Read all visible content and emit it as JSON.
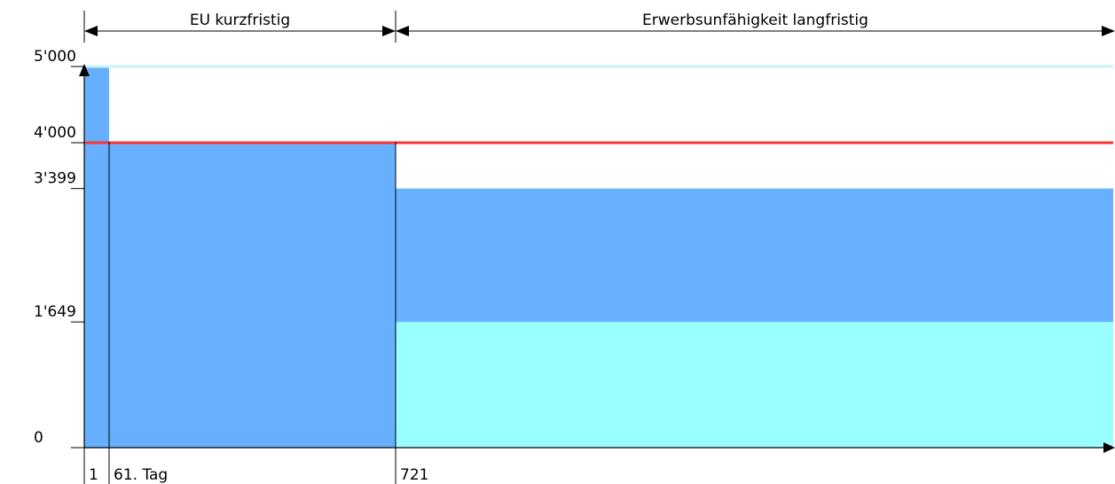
{
  "chart_data": {
    "type": "area",
    "title": "",
    "xlabel": "",
    "ylabel": "",
    "ylim": [
      0,
      5000
    ],
    "y_ticks": [
      {
        "value": 0,
        "label": "0"
      },
      {
        "value": 1649,
        "label": "1'649"
      },
      {
        "value": 3399,
        "label": "3'399"
      },
      {
        "value": 4000,
        "label": "4'000"
      },
      {
        "value": 5000,
        "label": "5'000"
      }
    ],
    "x_markers": [
      {
        "day": 1,
        "label": "1"
      },
      {
        "day": 61,
        "label": "61. Tag"
      },
      {
        "day": 721,
        "label": "721"
      }
    ],
    "phases": [
      {
        "label": "EU kurzfristig",
        "from_day": 1,
        "to_day": 721
      },
      {
        "label": "Erwerbsunfähigkeit langfristig",
        "from_day": 721,
        "to_day": null
      }
    ],
    "series": [
      {
        "color": "#66b0ff",
        "segments": [
          {
            "from_day": 1,
            "to_day": 61,
            "value": 5000
          },
          {
            "from_day": 61,
            "to_day": 721,
            "value": 4000
          },
          {
            "from_day": 721,
            "to_day": null,
            "value": 3399
          }
        ]
      },
      {
        "color": "#99ffff",
        "segments": [
          {
            "from_day": 721,
            "to_day": null,
            "value": 1649
          }
        ]
      }
    ],
    "reference_lines": [
      {
        "value": 4000,
        "color": "#ff3333"
      },
      {
        "value": 5000,
        "color": "#ccf2f7"
      }
    ]
  }
}
